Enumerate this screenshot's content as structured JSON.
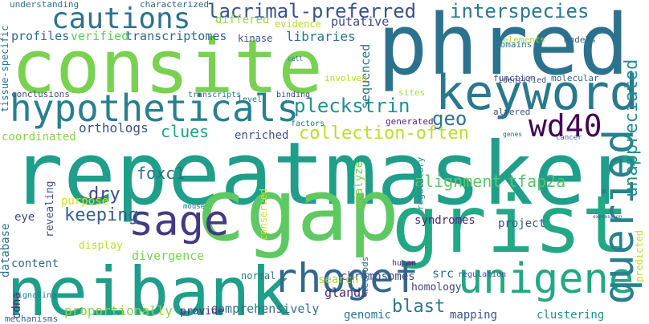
{
  "words": [
    {
      "text": "repeatmasker",
      "color": "#1f9e89"
    },
    {
      "text": "consite",
      "color": "#7ad151"
    },
    {
      "text": "phred",
      "color": "#2c728e"
    },
    {
      "text": "neibank",
      "color": "#1f9e89"
    },
    {
      "text": "cgap",
      "color": "#5ec962"
    },
    {
      "text": "grist",
      "color": "#22a884"
    },
    {
      "text": "keyword",
      "color": "#2a788e"
    },
    {
      "text": "hypotheticals",
      "color": "#27808e"
    },
    {
      "text": "rhogef",
      "color": "#31688e"
    },
    {
      "text": "unigene",
      "color": "#22a884"
    },
    {
      "text": "sage",
      "color": "#443a83"
    },
    {
      "text": "queried",
      "color": "#26828e"
    },
    {
      "text": "wd40",
      "color": "#440154"
    },
    {
      "text": "cautions",
      "color": "#2c728e"
    },
    {
      "text": "lacrimal-preferred",
      "color": "#3b528b"
    },
    {
      "text": "interspecies",
      "color": "#2a788e"
    },
    {
      "text": "pleckstrin",
      "color": "#21918c"
    },
    {
      "text": "geo",
      "color": "#2c728e"
    },
    {
      "text": "collection-often",
      "color": "#bddf26"
    },
    {
      "text": "unappreciated",
      "color": "#21918c"
    },
    {
      "text": "alignment",
      "color": "#5ec962"
    },
    {
      "text": "tfap2a",
      "color": "#52c569"
    },
    {
      "text": "keeping",
      "color": "#355f8d"
    },
    {
      "text": "dry",
      "color": "#3e4989"
    },
    {
      "text": "foxc1",
      "color": "#2c728e"
    },
    {
      "text": "blast",
      "color": "#2a788e"
    },
    {
      "text": "clues",
      "color": "#20a486"
    },
    {
      "text": "orthologs",
      "color": "#3b528b"
    },
    {
      "text": "libraries",
      "color": "#2c728e"
    },
    {
      "text": "divergence",
      "color": "#7ad151"
    },
    {
      "text": "proportionally",
      "color": "#86d549"
    },
    {
      "text": "comprehensively",
      "color": "#2c728e"
    },
    {
      "text": "clustering",
      "color": "#21918c"
    },
    {
      "text": "mapping",
      "color": "#3b528b"
    },
    {
      "text": "homology",
      "color": "#414487"
    },
    {
      "text": "chromosomes",
      "color": "#3e4989"
    },
    {
      "text": "src",
      "color": "#2c728e"
    },
    {
      "text": "syndromes",
      "color": "#482878"
    },
    {
      "text": "project",
      "color": "#3b528b"
    },
    {
      "text": "glands",
      "color": "#482878"
    },
    {
      "text": "search",
      "color": "#a8db34"
    },
    {
      "text": "genomic",
      "color": "#2a788e"
    },
    {
      "text": "transcriptomes",
      "color": "#31688e"
    },
    {
      "text": "profiles",
      "color": "#31688e"
    },
    {
      "text": "verified",
      "color": "#5ec962"
    },
    {
      "text": "differed",
      "color": "#8fd744"
    },
    {
      "text": "evidence",
      "color": "#b5de2b"
    },
    {
      "text": "putative",
      "color": "#414487"
    },
    {
      "text": "kinase",
      "color": "#3b528b"
    },
    {
      "text": "sequenced",
      "color": "#2a788e"
    },
    {
      "text": "enriched",
      "color": "#3b528b"
    },
    {
      "text": "coordinated",
      "color": "#86d549"
    },
    {
      "text": "purpose",
      "color": "#d8e219"
    },
    {
      "text": "display",
      "color": "#bddf26"
    },
    {
      "text": "content",
      "color": "#31688e"
    },
    {
      "text": "eye",
      "color": "#3e4989"
    },
    {
      "text": "analyze",
      "color": "#7ad151"
    },
    {
      "text": "normal",
      "color": "#2a788e"
    },
    {
      "text": "conserved",
      "color": "#d0e11c"
    },
    {
      "text": "predicted",
      "color": "#bddf26"
    },
    {
      "text": "database",
      "color": "#2c728e"
    },
    {
      "text": "cdna",
      "color": "#482878"
    },
    {
      "text": "revealing",
      "color": "#3b528b"
    },
    {
      "text": "provide",
      "color": "#482878"
    },
    {
      "text": "mechanisms",
      "color": "#355f8d"
    },
    {
      "text": "signaling",
      "color": "#2a788e"
    },
    {
      "text": "methods",
      "color": "#31688e"
    },
    {
      "text": "regulatory",
      "color": "#21918c"
    },
    {
      "text": "understanding",
      "color": "#2c728e"
    },
    {
      "text": "characterized",
      "color": "#31688e"
    },
    {
      "text": "identified",
      "color": "#3b528b"
    },
    {
      "text": "elements",
      "color": "#a8db34"
    },
    {
      "text": "models",
      "color": "#355f8d"
    },
    {
      "text": "domains",
      "color": "#2a788e"
    },
    {
      "text": "molecular",
      "color": "#31688e"
    },
    {
      "text": "function",
      "color": "#3b528b"
    },
    {
      "text": "cell",
      "color": "#2c728e"
    },
    {
      "text": "involved",
      "color": "#b5de2b"
    },
    {
      "text": "conclusions",
      "color": "#3b528b"
    },
    {
      "text": "tissue-specific",
      "color": "#2c728e"
    },
    {
      "text": "transcripts",
      "color": "#2a788e"
    },
    {
      "text": "binding",
      "color": "#3e4989"
    },
    {
      "text": "level",
      "color": "#2c728e"
    },
    {
      "text": "sites",
      "color": "#a8db34"
    },
    {
      "text": "factors",
      "color": "#2a788e"
    },
    {
      "text": "generated",
      "color": "#482878"
    },
    {
      "text": "altered",
      "color": "#3b528b"
    },
    {
      "text": "genes",
      "color": "#31688e"
    },
    {
      "text": "cancer",
      "color": "#2c728e"
    },
    {
      "text": "expression",
      "color": "#3e4989"
    },
    {
      "text": "mouse",
      "color": "#2c728e"
    },
    {
      "text": "regulation",
      "color": "#3b528b"
    },
    {
      "text": "human",
      "color": "#482878"
    }
  ]
}
